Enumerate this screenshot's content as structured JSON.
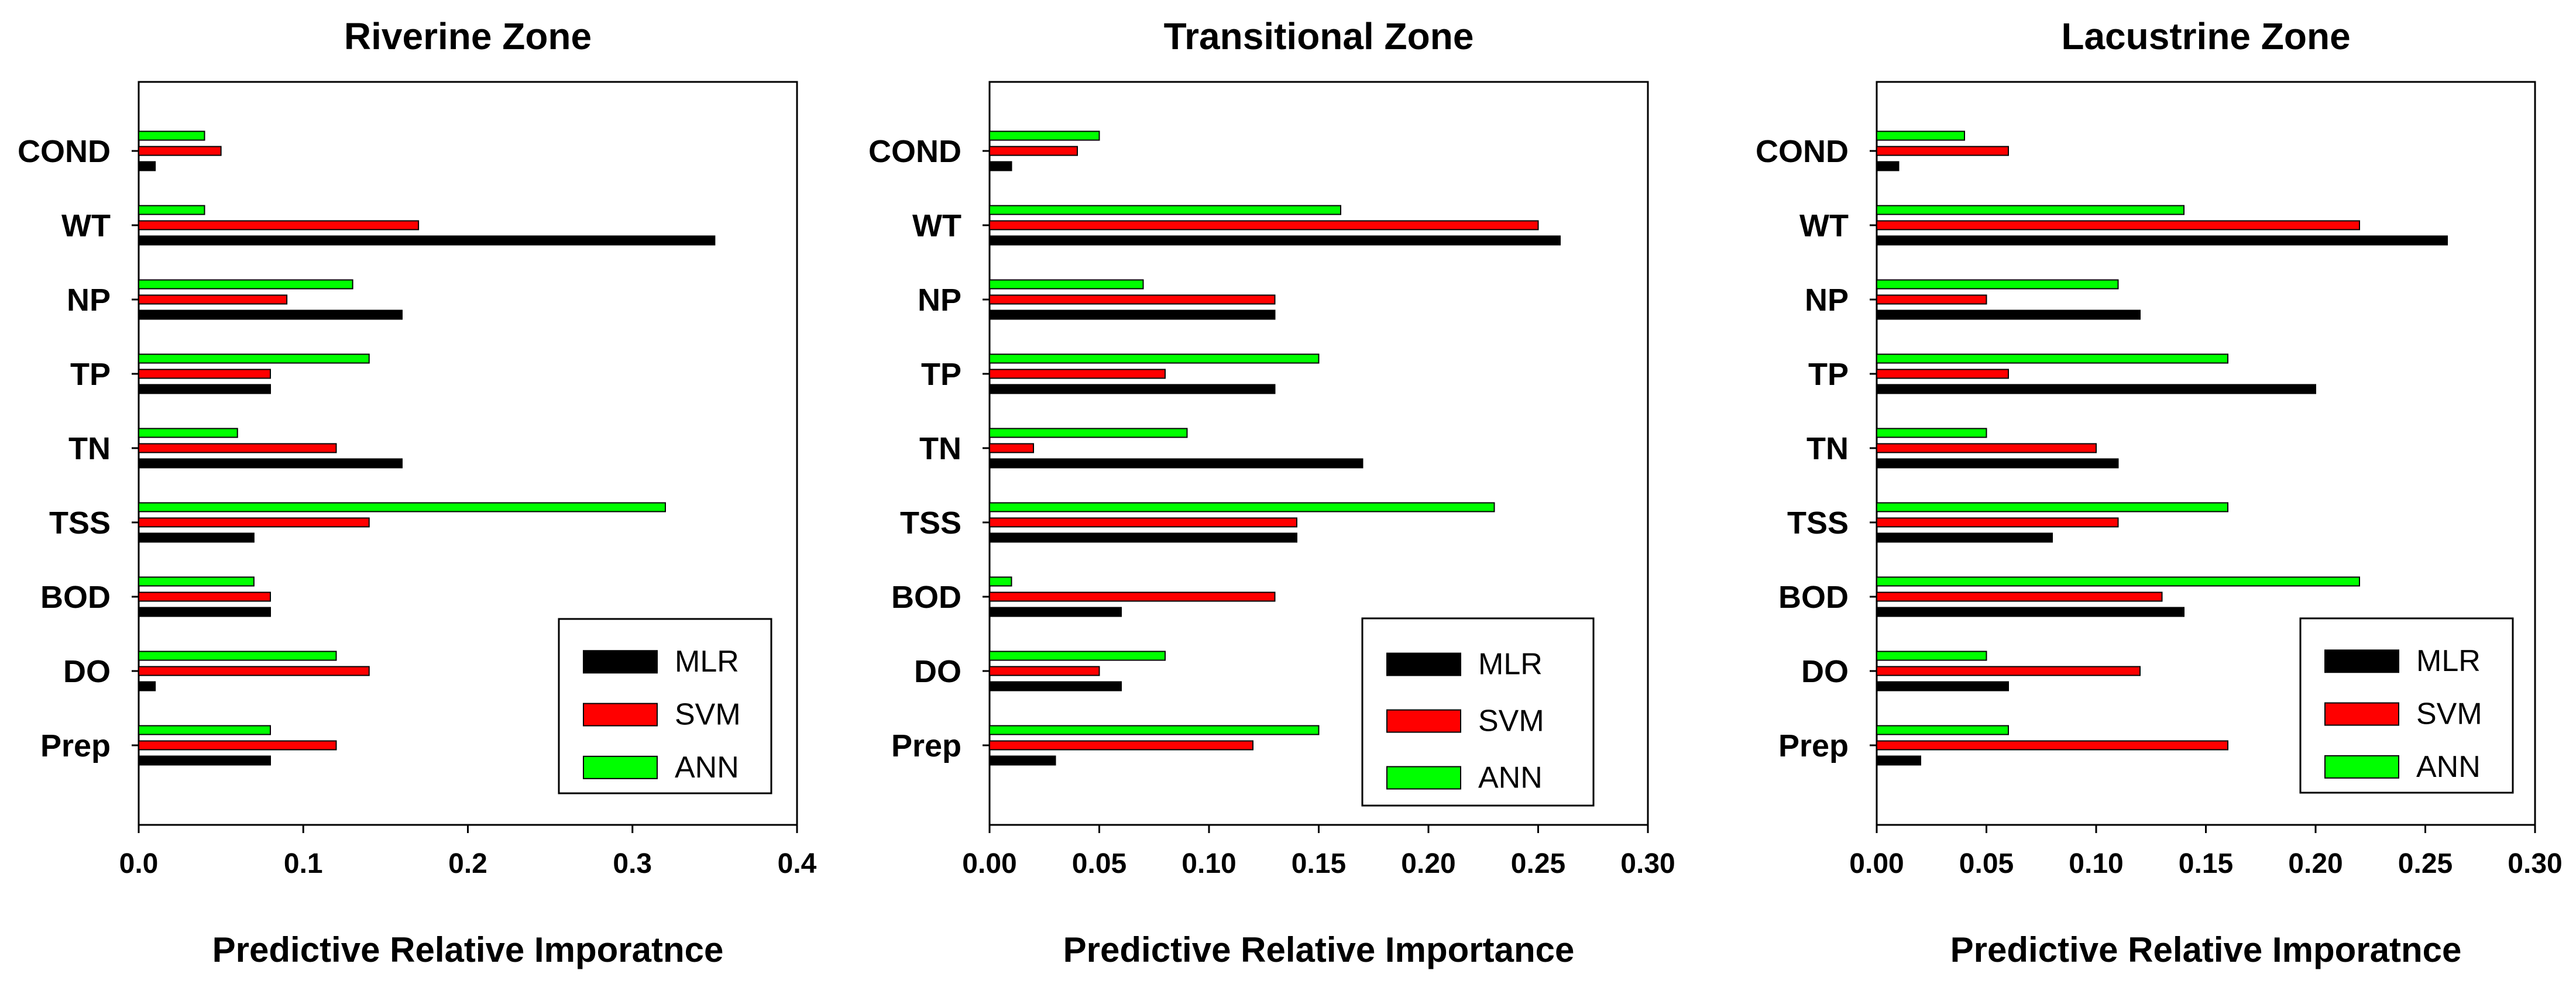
{
  "colors": {
    "MLR": "#000000",
    "SVM": "#ff0000",
    "ANN": "#00ff00"
  },
  "chart_data": [
    {
      "type": "bar",
      "orientation": "horizontal",
      "title": "Riverine Zone",
      "xlabel": "Predictive Relative Imporatnce",
      "categories": [
        "COND",
        "WT",
        "NP",
        "TP",
        "TN",
        "TSS",
        "BOD",
        "DO",
        "Prep"
      ],
      "series": [
        {
          "name": "MLR",
          "values": [
            0.01,
            0.35,
            0.16,
            0.08,
            0.16,
            0.07,
            0.08,
            0.01,
            0.08
          ]
        },
        {
          "name": "SVM",
          "values": [
            0.05,
            0.17,
            0.09,
            0.08,
            0.12,
            0.14,
            0.08,
            0.14,
            0.12
          ]
        },
        {
          "name": "ANN",
          "values": [
            0.04,
            0.04,
            0.13,
            0.14,
            0.06,
            0.32,
            0.07,
            0.12,
            0.08
          ]
        }
      ],
      "xlim": [
        0,
        0.4
      ],
      "xticks": [
        0,
        0.1,
        0.2,
        0.3,
        0.4
      ],
      "xtick_labels": [
        "0.0",
        "0.1",
        "0.2",
        "0.3",
        "0.4"
      ],
      "legend": "bottom-right",
      "grid": false
    },
    {
      "type": "bar",
      "orientation": "horizontal",
      "title": "Transitional Zone",
      "xlabel": "Predictive Relative Importance",
      "categories": [
        "COND",
        "WT",
        "NP",
        "TP",
        "TN",
        "TSS",
        "BOD",
        "DO",
        "Prep"
      ],
      "series": [
        {
          "name": "MLR",
          "values": [
            0.01,
            0.26,
            0.13,
            0.13,
            0.17,
            0.14,
            0.06,
            0.06,
            0.03
          ]
        },
        {
          "name": "SVM",
          "values": [
            0.04,
            0.25,
            0.13,
            0.08,
            0.02,
            0.14,
            0.13,
            0.05,
            0.12
          ]
        },
        {
          "name": "ANN",
          "values": [
            0.05,
            0.16,
            0.07,
            0.15,
            0.09,
            0.23,
            0.01,
            0.08,
            0.15
          ]
        }
      ],
      "xlim": [
        0,
        0.3
      ],
      "xticks": [
        0,
        0.05,
        0.1,
        0.15,
        0.2,
        0.25,
        0.3
      ],
      "xtick_labels": [
        "0.00",
        "0.05",
        "0.10",
        "0.15",
        "0.20",
        "0.25",
        "0.30"
      ],
      "legend": "bottom-right",
      "grid": false
    },
    {
      "type": "bar",
      "orientation": "horizontal",
      "title": "Lacustrine Zone",
      "xlabel": "Predictive Relative Imporatnce",
      "categories": [
        "COND",
        "WT",
        "NP",
        "TP",
        "TN",
        "TSS",
        "BOD",
        "DO",
        "Prep"
      ],
      "series": [
        {
          "name": "MLR",
          "values": [
            0.01,
            0.26,
            0.12,
            0.2,
            0.11,
            0.08,
            0.14,
            0.06,
            0.02
          ]
        },
        {
          "name": "SVM",
          "values": [
            0.06,
            0.22,
            0.05,
            0.06,
            0.1,
            0.11,
            0.13,
            0.12,
            0.16
          ]
        },
        {
          "name": "ANN",
          "values": [
            0.04,
            0.14,
            0.11,
            0.16,
            0.05,
            0.16,
            0.22,
            0.05,
            0.06
          ]
        }
      ],
      "xlim": [
        0,
        0.3
      ],
      "xticks": [
        0,
        0.05,
        0.1,
        0.15,
        0.2,
        0.25,
        0.3
      ],
      "xtick_labels": [
        "0.00",
        "0.05",
        "0.10",
        "0.15",
        "0.20",
        "0.25",
        "0.30"
      ],
      "legend": "bottom-right",
      "grid": false
    }
  ]
}
